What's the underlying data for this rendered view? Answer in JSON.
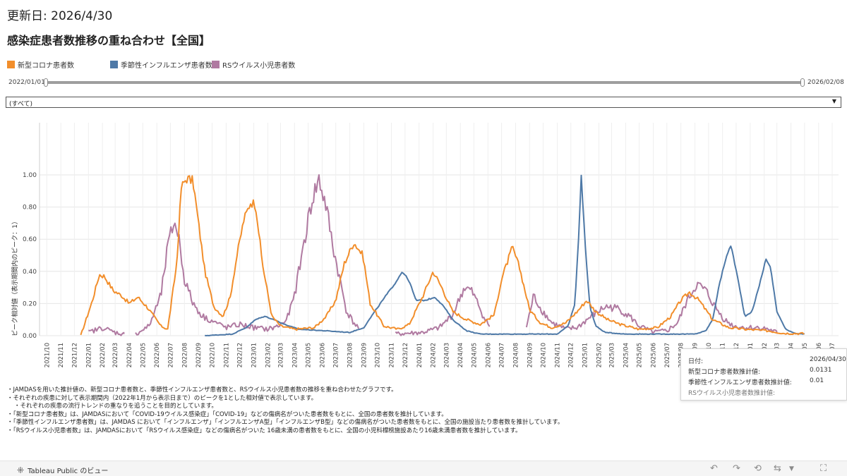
{
  "header": {
    "updated": "更新日: 2026/4/30",
    "title": "感染症患者数推移の重ね合わせ【全国】"
  },
  "legend": [
    {
      "name": "新型コロナ患者数",
      "color": "#F28E2B"
    },
    {
      "name": "季節性インフルエンザ患者数",
      "color": "#4E79A7"
    },
    {
      "name": "RSウイルス小児患者数",
      "color": "#B07AA1"
    }
  ],
  "slider": {
    "start_label": "2022/01/01",
    "end_label": "2026/02/08"
  },
  "filter": {
    "selected": "(すべて)"
  },
  "chart_data": {
    "type": "line",
    "title": "",
    "ylabel": "ピーク相対値（表示期間内のピーク：1）",
    "xlabel": "",
    "ylim": [
      0,
      1
    ],
    "yticks": [
      "0.00",
      "0.20",
      "0.40",
      "0.60",
      "0.80",
      "1.00"
    ],
    "xlim": [
      "2021-09-15",
      "2026-07-15"
    ],
    "x_tick_labels": [
      "2021/10",
      "2021/11",
      "2021/12",
      "2022/01",
      "2022/02",
      "2022/03",
      "2022/04",
      "2022/05",
      "2022/06",
      "2022/07",
      "2022/08",
      "2022/09",
      "2022/10",
      "2022/11",
      "2022/12",
      "2023/01",
      "2023/02",
      "2023/03",
      "2023/04",
      "2023/05",
      "2023/06",
      "2023/07",
      "2023/08",
      "2023/09",
      "2023/10",
      "2023/11",
      "2023/12",
      "2024/01",
      "2024/02",
      "2024/03",
      "2024/04",
      "2024/05",
      "2024/06",
      "2024/07",
      "2024/08",
      "2024/09",
      "2024/10",
      "2024/11",
      "2024/12",
      "2025/01",
      "2025/02",
      "2025/03",
      "2025/04",
      "2025/05",
      "2025/06",
      "2025/07",
      "2025/08",
      "2025/09",
      "2025/10",
      "2025/11",
      "2025/12",
      "2026/01",
      "2026/02",
      "2026/03",
      "2026/04",
      "2026/05",
      "2026/06",
      "2026/07"
    ],
    "grid": true,
    "series": [
      {
        "name": "新型コロナ患者数",
        "color": "#F28E2B",
        "noise": 0.02,
        "points": [
          [
            "2021-12-15",
            0.0
          ],
          [
            "2022-01-10",
            0.22
          ],
          [
            "2022-01-25",
            0.38
          ],
          [
            "2022-02-05",
            0.37
          ],
          [
            "2022-02-25",
            0.28
          ],
          [
            "2022-03-15",
            0.25
          ],
          [
            "2022-04-01",
            0.2
          ],
          [
            "2022-04-20",
            0.24
          ],
          [
            "2022-05-10",
            0.18
          ],
          [
            "2022-06-10",
            0.06
          ],
          [
            "2022-06-25",
            0.04
          ],
          [
            "2022-07-15",
            0.45
          ],
          [
            "2022-07-25",
            0.92
          ],
          [
            "2022-08-05",
            0.98
          ],
          [
            "2022-08-20",
            0.96
          ],
          [
            "2022-09-01",
            0.7
          ],
          [
            "2022-09-15",
            0.4
          ],
          [
            "2022-10-05",
            0.18
          ],
          [
            "2022-10-25",
            0.12
          ],
          [
            "2022-11-10",
            0.24
          ],
          [
            "2022-11-25",
            0.5
          ],
          [
            "2022-12-10",
            0.72
          ],
          [
            "2022-12-25",
            0.83
          ],
          [
            "2023-01-05",
            0.82
          ],
          [
            "2023-01-20",
            0.45
          ],
          [
            "2023-02-10",
            0.12
          ],
          [
            "2023-03-01",
            0.06
          ],
          [
            "2023-04-01",
            0.04
          ],
          [
            "2023-05-15",
            0.05
          ],
          [
            "2023-06-10",
            0.12
          ],
          [
            "2023-07-01",
            0.22
          ],
          [
            "2023-07-20",
            0.45
          ],
          [
            "2023-08-10",
            0.58
          ],
          [
            "2023-08-30",
            0.5
          ],
          [
            "2023-09-15",
            0.2
          ],
          [
            "2023-10-15",
            0.06
          ],
          [
            "2023-11-15",
            0.04
          ],
          [
            "2023-12-10",
            0.07
          ],
          [
            "2024-01-10",
            0.25
          ],
          [
            "2024-02-01",
            0.4
          ],
          [
            "2024-02-20",
            0.3
          ],
          [
            "2024-03-15",
            0.15
          ],
          [
            "2024-04-15",
            0.1
          ],
          [
            "2024-05-15",
            0.07
          ],
          [
            "2024-06-15",
            0.13
          ],
          [
            "2024-07-01",
            0.35
          ],
          [
            "2024-07-25",
            0.55
          ],
          [
            "2024-08-10",
            0.42
          ],
          [
            "2024-09-01",
            0.16
          ],
          [
            "2024-09-25",
            0.08
          ],
          [
            "2024-10-20",
            0.05
          ],
          [
            "2024-11-20",
            0.08
          ],
          [
            "2024-12-15",
            0.15
          ],
          [
            "2025-01-05",
            0.22
          ],
          [
            "2025-01-25",
            0.15
          ],
          [
            "2025-02-20",
            0.1
          ],
          [
            "2025-03-20",
            0.07
          ],
          [
            "2025-05-01",
            0.04
          ],
          [
            "2025-06-10",
            0.05
          ],
          [
            "2025-07-10",
            0.12
          ],
          [
            "2025-08-01",
            0.22
          ],
          [
            "2025-08-20",
            0.27
          ],
          [
            "2025-09-10",
            0.22
          ],
          [
            "2025-10-10",
            0.1
          ],
          [
            "2025-11-15",
            0.05
          ],
          [
            "2025-12-20",
            0.04
          ],
          [
            "2026-02-10",
            0.03
          ],
          [
            "2026-03-15",
            0.015
          ],
          [
            "2026-04-30",
            0.0131
          ]
        ]
      },
      {
        "name": "季節性インフルエンザ患者数",
        "color": "#4E79A7",
        "noise": 0.006,
        "points": [
          [
            "2022-09-15",
            0.0
          ],
          [
            "2022-11-15",
            0.01
          ],
          [
            "2022-12-15",
            0.05
          ],
          [
            "2023-01-05",
            0.1
          ],
          [
            "2023-01-25",
            0.12
          ],
          [
            "2023-02-15",
            0.1
          ],
          [
            "2023-03-10",
            0.07
          ],
          [
            "2023-04-10",
            0.04
          ],
          [
            "2023-06-10",
            0.03
          ],
          [
            "2023-08-01",
            0.02
          ],
          [
            "2023-09-01",
            0.05
          ],
          [
            "2023-09-25",
            0.15
          ],
          [
            "2023-10-20",
            0.25
          ],
          [
            "2023-11-10",
            0.33
          ],
          [
            "2023-11-25",
            0.4
          ],
          [
            "2023-12-10",
            0.34
          ],
          [
            "2023-12-25",
            0.22
          ],
          [
            "2024-01-15",
            0.22
          ],
          [
            "2024-02-05",
            0.24
          ],
          [
            "2024-02-25",
            0.18
          ],
          [
            "2024-03-15",
            0.1
          ],
          [
            "2024-04-15",
            0.03
          ],
          [
            "2024-05-15",
            0.01
          ],
          [
            "2024-11-01",
            0.01
          ],
          [
            "2024-11-25",
            0.06
          ],
          [
            "2024-12-10",
            0.2
          ],
          [
            "2024-12-18",
            0.6
          ],
          [
            "2024-12-24",
            1.0
          ],
          [
            "2025-01-02",
            0.55
          ],
          [
            "2025-01-12",
            0.18
          ],
          [
            "2025-01-25",
            0.06
          ],
          [
            "2025-02-15",
            0.02
          ],
          [
            "2025-04-01",
            0.01
          ],
          [
            "2025-09-01",
            0.01
          ],
          [
            "2025-09-25",
            0.03
          ],
          [
            "2025-10-10",
            0.1
          ],
          [
            "2025-10-25",
            0.32
          ],
          [
            "2025-11-10",
            0.5
          ],
          [
            "2025-11-20",
            0.56
          ],
          [
            "2025-12-05",
            0.35
          ],
          [
            "2025-12-20",
            0.12
          ],
          [
            "2026-01-05",
            0.15
          ],
          [
            "2026-01-20",
            0.3
          ],
          [
            "2026-02-05",
            0.48
          ],
          [
            "2026-02-15",
            0.42
          ],
          [
            "2026-03-01",
            0.15
          ],
          [
            "2026-03-20",
            0.04
          ],
          [
            "2026-04-10",
            0.015
          ],
          [
            "2026-04-30",
            0.01
          ]
        ]
      },
      {
        "name": "RSウイルス小児患者数",
        "color": "#B07AA1",
        "noise": 0.045,
        "segments": [
          [
            [
              "2022-01-01",
              0.02
            ],
            [
              "2022-02-01",
              0.05
            ],
            [
              "2022-03-01",
              0.02
            ],
            [
              "2022-03-20",
              0.01
            ]
          ],
          [
            [
              "2022-04-15",
              0.01
            ],
            [
              "2022-05-15",
              0.06
            ],
            [
              "2022-06-10",
              0.25
            ],
            [
              "2022-06-25",
              0.55
            ],
            [
              "2022-07-10",
              0.72
            ],
            [
              "2022-07-20",
              0.6
            ],
            [
              "2022-08-01",
              0.35
            ],
            [
              "2022-08-20",
              0.2
            ],
            [
              "2022-09-10",
              0.12
            ],
            [
              "2022-10-10",
              0.08
            ],
            [
              "2022-11-01",
              0.05
            ],
            [
              "2022-12-01",
              0.07
            ],
            [
              "2023-01-01",
              0.05
            ],
            [
              "2023-02-01",
              0.04
            ],
            [
              "2023-02-25",
              0.06
            ],
            [
              "2023-03-15",
              0.1
            ],
            [
              "2023-04-01",
              0.25
            ],
            [
              "2023-04-20",
              0.55
            ],
            [
              "2023-05-10",
              0.85
            ],
            [
              "2023-05-25",
              0.97
            ],
            [
              "2023-06-10",
              0.8
            ],
            [
              "2023-06-25",
              0.55
            ],
            [
              "2023-07-10",
              0.35
            ],
            [
              "2023-07-25",
              0.15
            ],
            [
              "2023-08-10",
              0.08
            ],
            [
              "2023-08-20",
              0.05
            ]
          ],
          [
            [
              "2023-11-10",
              0.01
            ],
            [
              "2023-12-10",
              0.015
            ],
            [
              "2024-01-10",
              0.02
            ],
            [
              "2024-02-15",
              0.05
            ],
            [
              "2024-03-15",
              0.13
            ],
            [
              "2024-04-10",
              0.3
            ],
            [
              "2024-04-25",
              0.28
            ],
            [
              "2024-05-10",
              0.2
            ],
            [
              "2024-05-25",
              0.1
            ],
            [
              "2024-06-05",
              0.06
            ]
          ],
          [
            [
              "2024-08-25",
              0.05
            ],
            [
              "2024-09-10",
              0.25
            ],
            [
              "2024-09-25",
              0.17
            ],
            [
              "2024-10-20",
              0.08
            ],
            [
              "2024-11-20",
              0.04
            ],
            [
              "2024-12-15",
              0.05
            ],
            [
              "2025-01-15",
              0.12
            ],
            [
              "2025-02-15",
              0.18
            ],
            [
              "2025-03-15",
              0.17
            ],
            [
              "2025-04-10",
              0.12
            ],
            [
              "2025-05-01",
              0.06
            ],
            [
              "2025-06-01",
              0.02
            ],
            [
              "2025-07-01",
              0.03
            ],
            [
              "2025-07-25",
              0.08
            ],
            [
              "2025-08-15",
              0.22
            ],
            [
              "2025-09-05",
              0.32
            ],
            [
              "2025-09-25",
              0.28
            ],
            [
              "2025-10-15",
              0.18
            ],
            [
              "2025-11-05",
              0.1
            ],
            [
              "2025-11-25",
              0.06
            ],
            [
              "2025-12-20",
              0.05
            ],
            [
              "2026-01-20",
              0.05
            ],
            [
              "2026-02-10",
              0.04
            ],
            [
              "2026-03-01",
              0.02
            ]
          ]
        ]
      }
    ]
  },
  "notes": [
    "・JAMDASを用いた推計値の、新型コロナ患者数と、季節性インフルエンザ患者数と、RSウイルス小児患者数の推移を重ね合わせたグラフです。",
    "・それぞれの疾患に対して表示期間内（2022年1月から表示日まで）のピークを1とした相対値で表示しています。",
    "・それぞれの疾患の流行トレンドの重なりを追うことを目的としています。",
    "・「新型コロナ患者数」は、JAMDASにおいて「COVID-19ウイルス感染症」「COVID-19」などの傷病名がついた患者数をもとに、全国の患者数を推計しています。",
    "・「季節性インフルエンザ患者数」は、JAMDAS において「インフルエンザ」「インフルエンザA型」「インフルエンザB型」などの傷病名がついた患者数をもとに、全国の施設当たり患者数を推計しています。",
    "・「RSウイルス小児患者数」は、JAMDASにおいて「RSウイルス感染症」などの傷病名がついた 16歳未満の患者数をもとに、全国の小児科標榜施設あたり16歳未満患者数を推計しています。"
  ],
  "tooltip": {
    "rows": [
      {
        "label": "日付:",
        "value": "2026/04/30"
      },
      {
        "label": "新型コロナ患者数推計値:",
        "value": "0.0131"
      },
      {
        "label": "季節性インフルエンザ患者数推計値:",
        "value": "0.01"
      },
      {
        "label": "RSウイルス小児患者数推計値:",
        "value": ""
      }
    ]
  },
  "footer": {
    "brand": "Tableau Public のビュー"
  }
}
